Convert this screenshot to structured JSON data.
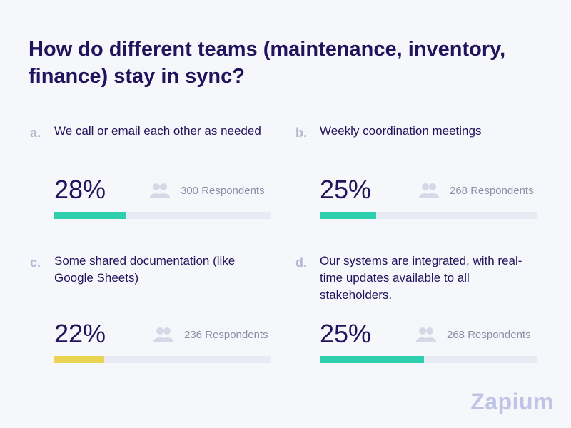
{
  "title": "How do different teams (maintenance, inventory, finance) stay in sync?",
  "logo_text": "Zapium",
  "colors": {
    "green": "#2ecfad",
    "yellow": "#e8d450",
    "track": "#e9ebf4"
  },
  "chart_data": {
    "type": "bar",
    "title": "How do different teams (maintenance, inventory, finance) stay in sync?",
    "categories": [
      "We call or email each other as needed",
      "Weekly coordination meetings",
      "Some shared documentation (like Google Sheets)",
      "Our systems are integrated, with real-time updates available to all stakeholders."
    ],
    "values": [
      28,
      25,
      22,
      25
    ],
    "ylim": [
      0,
      100
    ],
    "options": [
      {
        "letter": "a.",
        "question": "We call or email each other as needed",
        "percent_label": "28%",
        "percent": 28,
        "respondents": "300 Respondents",
        "fill_fraction": 0.33,
        "color": "#2ecfad"
      },
      {
        "letter": "b.",
        "question": "Weekly coordination meetings",
        "percent_label": "25%",
        "percent": 25,
        "respondents": "268 Respondents",
        "fill_fraction": 0.26,
        "color": "#2ecfad"
      },
      {
        "letter": "c.",
        "question": "Some shared documentation (like Google Sheets)",
        "percent_label": "22%",
        "percent": 22,
        "respondents": "236 Respondents",
        "fill_fraction": 0.23,
        "color": "#e8d450"
      },
      {
        "letter": "d.",
        "question": "Our systems are integrated, with real-time updates available to all stakeholders.",
        "percent_label": "25%",
        "percent": 25,
        "respondents": "268 Respondents",
        "fill_fraction": 0.48,
        "color": "#2ecfad"
      }
    ]
  }
}
